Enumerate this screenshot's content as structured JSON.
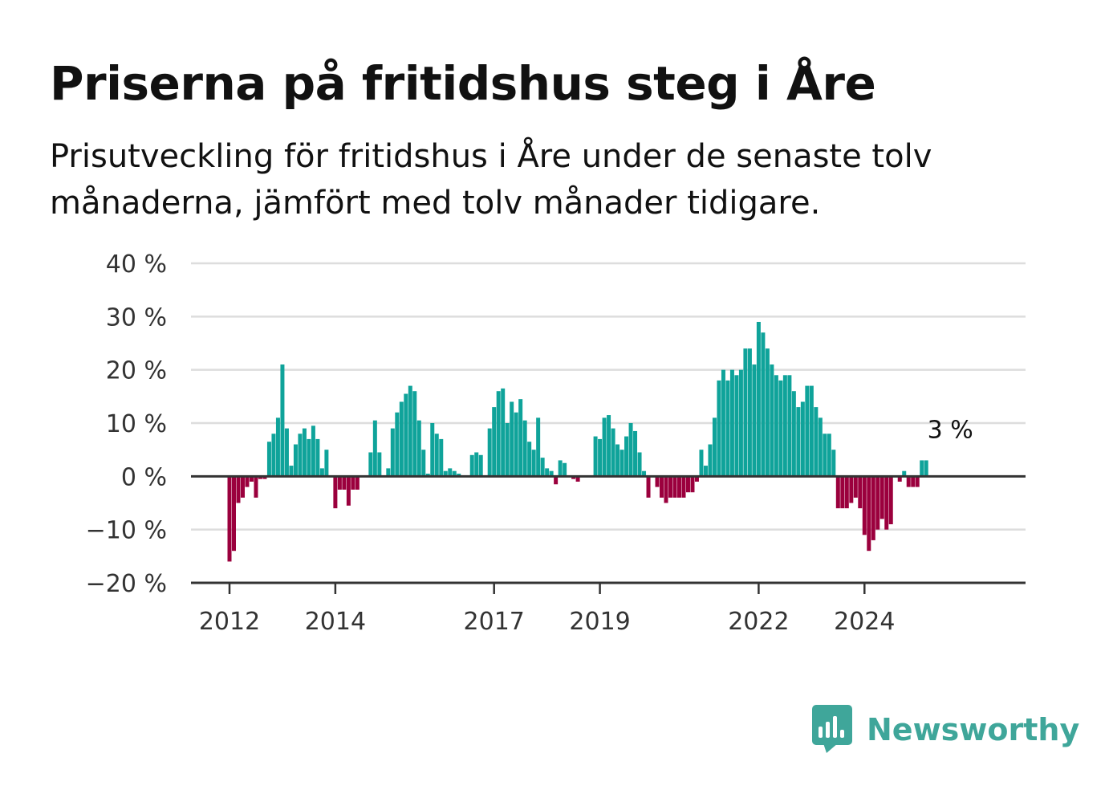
{
  "title": "Priserna på fritidshus steg i Åre",
  "subtitle": "Prisutveckling för fritidshus i Åre under de senaste tolv månaderna, jämfört med tolv månader tidigare.",
  "brand": {
    "name": "Newsworthy",
    "icon": "newsworthy-logo-icon",
    "color": "#3fa69a"
  },
  "colors": {
    "positive": "#0fa39a",
    "negative": "#9b003d",
    "grid": "#dddddd",
    "axis": "#333333"
  },
  "chart_data": {
    "type": "bar",
    "title": "Priserna på fritidshus steg i Åre",
    "xlabel": "",
    "ylabel": "",
    "ylim": [
      -20,
      40
    ],
    "grid": true,
    "yticks": [
      40,
      30,
      20,
      10,
      0,
      -10,
      -20
    ],
    "ytick_labels": [
      "40 %",
      "30 %",
      "20 %",
      "10 %",
      "0 %",
      "−10 %",
      "−20 %"
    ],
    "xticks": [
      "2012",
      "2014",
      "2017",
      "2019",
      "2022",
      "2024"
    ],
    "start": "2012-01",
    "last_value_label": "3 %",
    "values": [
      -16,
      -14,
      -5,
      -4,
      -2,
      -1,
      -4,
      -0.5,
      -0.5,
      6.5,
      8,
      11,
      21,
      9,
      2,
      6,
      8,
      9,
      7,
      9.5,
      7,
      1.5,
      5,
      0,
      -6,
      -2.5,
      -2.5,
      -5.5,
      -2.5,
      -2.5,
      0,
      0,
      4.5,
      10.5,
      4.5,
      0,
      1.5,
      9,
      12,
      14,
      15.5,
      17,
      16,
      10.5,
      5,
      0.5,
      10,
      8,
      7,
      1,
      1.5,
      1,
      0.5,
      0,
      0,
      4,
      4.5,
      4,
      0,
      9,
      13,
      16,
      16.5,
      10,
      14,
      12,
      14.5,
      10.5,
      6.5,
      5,
      11,
      3.5,
      1.5,
      1,
      -1.5,
      3,
      2.5,
      0,
      -0.5,
      -1,
      0,
      0,
      0,
      7.5,
      7,
      11,
      11.5,
      9,
      6,
      5,
      7.5,
      10,
      8.5,
      4.5,
      1,
      -4,
      0,
      -2,
      -4,
      -5,
      -4,
      -4,
      -4,
      -4,
      -3,
      -3,
      -1,
      5,
      2,
      6,
      11,
      18,
      20,
      18,
      20,
      19,
      20,
      24,
      24,
      21,
      29,
      27,
      24,
      21,
      19,
      18,
      19,
      19,
      16,
      13,
      14,
      17,
      17,
      13,
      11,
      8,
      8,
      5,
      -6,
      -6,
      -6,
      -5,
      -4,
      -6,
      -11,
      -14,
      -12,
      -10,
      -8,
      -10,
      -9,
      0,
      -1,
      1,
      -2,
      -2,
      -2,
      3,
      3
    ]
  }
}
